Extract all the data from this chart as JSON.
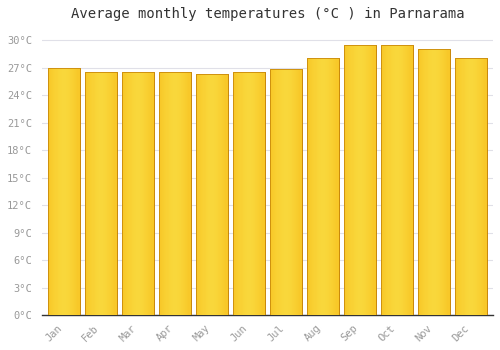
{
  "months": [
    "Jan",
    "Feb",
    "Mar",
    "Apr",
    "May",
    "Jun",
    "Jul",
    "Aug",
    "Sep",
    "Oct",
    "Nov",
    "Dec"
  ],
  "temperatures": [
    27.0,
    26.5,
    26.5,
    26.5,
    26.3,
    26.5,
    26.8,
    28.0,
    29.5,
    29.5,
    29.0,
    28.0
  ],
  "bar_color_left": "#F5A800",
  "bar_color_center": "#FFD84D",
  "bar_color_right": "#F5A800",
  "bar_edge_color": "#C8880A",
  "background_color": "#ffffff",
  "plot_bg_color": "#ffffff",
  "grid_color": "#e0e0e8",
  "title": "Average monthly temperatures (°C ) in Parnarama",
  "title_fontsize": 10,
  "ylabel_ticks": [
    0,
    3,
    6,
    9,
    12,
    15,
    18,
    21,
    24,
    27,
    30
  ],
  "ylim": [
    0,
    31.5
  ],
  "tick_label_color": "#999999",
  "font_family": "monospace",
  "bar_width": 0.85
}
